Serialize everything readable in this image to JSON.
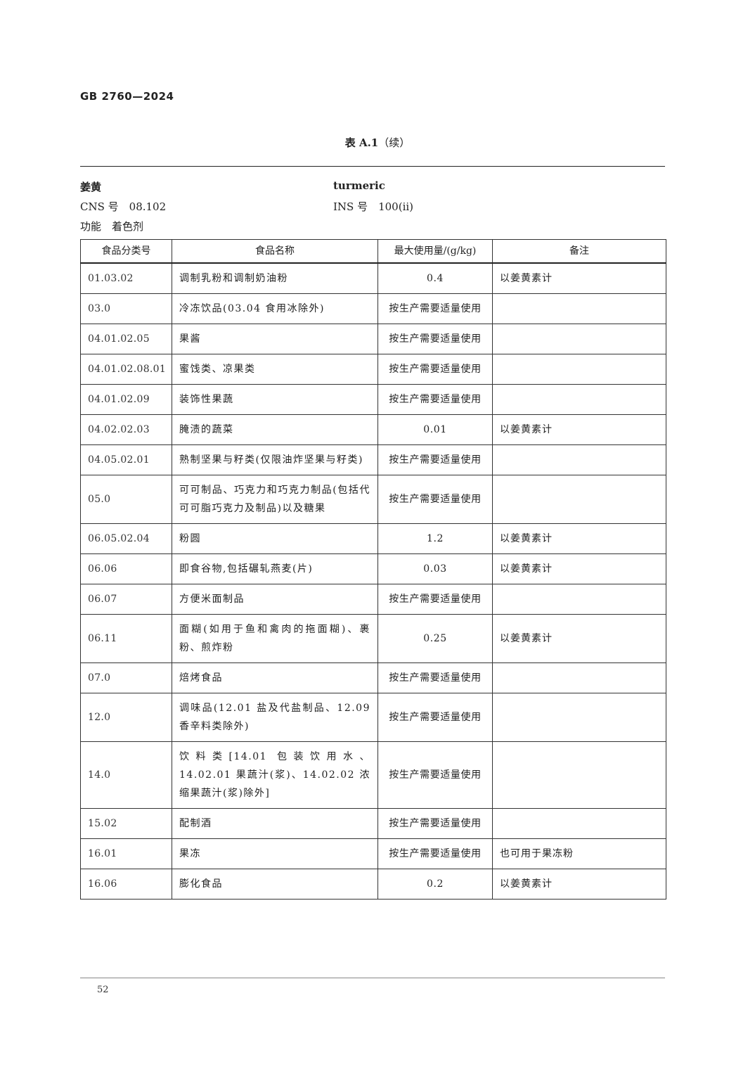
{
  "header": {
    "standard_no": "GB 2760—2024"
  },
  "table_title": {
    "label": "表 A.1",
    "suffix": "（续）"
  },
  "additive": {
    "name_cn": "姜黄",
    "name_en": "turmeric",
    "cns": "CNS 号　08.102",
    "ins": "INS 号　100(ii)",
    "function": "功能　着色剂"
  },
  "table": {
    "columns": [
      "食品分类号",
      "食品名称",
      "最大使用量/(g/kg)",
      "备注"
    ],
    "rows": [
      [
        "01.03.02",
        "调制乳粉和调制奶油粉",
        "0.4",
        "以姜黄素计"
      ],
      [
        "03.0",
        "冷冻饮品(03.04 食用冰除外)",
        "按生产需要适量使用",
        ""
      ],
      [
        "04.01.02.05",
        "果酱",
        "按生产需要适量使用",
        ""
      ],
      [
        "04.01.02.08.01",
        "蜜饯类、凉果类",
        "按生产需要适量使用",
        ""
      ],
      [
        "04.01.02.09",
        "装饰性果蔬",
        "按生产需要适量使用",
        ""
      ],
      [
        "04.02.02.03",
        "腌渍的蔬菜",
        "0.01",
        "以姜黄素计"
      ],
      [
        "04.05.02.01",
        "熟制坚果与籽类(仅限油炸坚果与籽类)",
        "按生产需要适量使用",
        ""
      ],
      [
        "05.0",
        "可可制品、巧克力和巧克力制品(包括代可可脂巧克力及制品)以及糖果",
        "按生产需要适量使用",
        ""
      ],
      [
        "06.05.02.04",
        "粉圆",
        "1.2",
        "以姜黄素计"
      ],
      [
        "06.06",
        "即食谷物,包括碾轧燕麦(片)",
        "0.03",
        "以姜黄素计"
      ],
      [
        "06.07",
        "方便米面制品",
        "按生产需要适量使用",
        ""
      ],
      [
        "06.11",
        "面糊(如用于鱼和禽肉的拖面糊)、裹粉、煎炸粉",
        "0.25",
        "以姜黄素计"
      ],
      [
        "07.0",
        "焙烤食品",
        "按生产需要适量使用",
        ""
      ],
      [
        "12.0",
        "调味品(12.01 盐及代盐制品、12.09 香辛料类除外)",
        "按生产需要适量使用",
        ""
      ],
      [
        "14.0",
        "饮料类[14.01 包装饮用水、14.02.01 果蔬汁(浆)、14.02.02 浓缩果蔬汁(浆)除外]",
        "按生产需要适量使用",
        ""
      ],
      [
        "15.02",
        "配制酒",
        "按生产需要适量使用",
        ""
      ],
      [
        "16.01",
        "果冻",
        "按生产需要适量使用",
        "也可用于果冻粉"
      ],
      [
        "16.06",
        "膨化食品",
        "0.2",
        "以姜黄素计"
      ]
    ]
  },
  "footer": {
    "page_number": "52"
  }
}
